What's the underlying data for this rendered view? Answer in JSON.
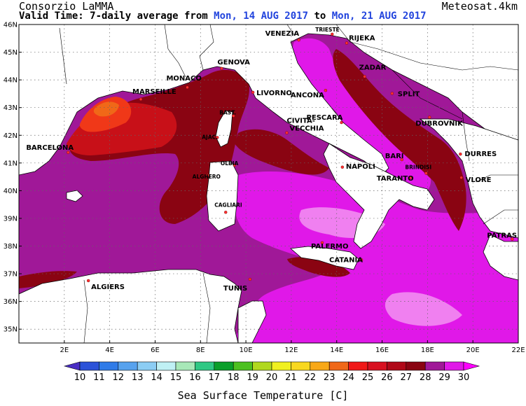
{
  "header": {
    "org": "Consorzio LaMMA",
    "product": "Meteosat.4km",
    "valid_prefix": "Valid Time: 7-daily average from",
    "date_from": "Mon, 14 AUG 2017",
    "date_sep": "to",
    "date_to": "Mon, 21 AUG 2017"
  },
  "axes": {
    "lat_labels": [
      "46N",
      "45N",
      "44N",
      "43N",
      "42N",
      "41N",
      "40N",
      "39N",
      "38N",
      "37N",
      "36N",
      "35N"
    ],
    "lon_labels": [
      "2E",
      "4E",
      "6E",
      "8E",
      "10E",
      "12E",
      "14E",
      "16E",
      "18E",
      "20E",
      "22E"
    ]
  },
  "cities": [
    {
      "name": "TRIESTE",
      "lon": 13.8,
      "lat": 45.65,
      "small": true
    },
    {
      "name": "VENEZIA",
      "lon": 12.33,
      "lat": 45.44
    },
    {
      "name": "RIJEKA",
      "lon": 14.44,
      "lat": 45.33
    },
    {
      "name": "GENOVA",
      "lon": 8.93,
      "lat": 44.41
    },
    {
      "name": "MONACO",
      "lon": 7.42,
      "lat": 43.73
    },
    {
      "name": "MARSEILLE",
      "lon": 5.37,
      "lat": 43.3
    },
    {
      "name": "LIVORNO",
      "lon": 10.31,
      "lat": 43.55
    },
    {
      "name": "ANCONA",
      "lon": 13.51,
      "lat": 43.62
    },
    {
      "name": "ZADAR",
      "lon": 15.23,
      "lat": 44.12
    },
    {
      "name": "SPLIT",
      "lon": 16.44,
      "lat": 43.51
    },
    {
      "name": "DUBROVNIK",
      "lon": 18.09,
      "lat": 42.65
    },
    {
      "name": "BAST.",
      "lon": 9.45,
      "lat": 42.7,
      "small": true
    },
    {
      "name": "AJAC.",
      "lon": 8.74,
      "lat": 41.92,
      "small": true
    },
    {
      "name": "PESCARA",
      "lon": 14.21,
      "lat": 42.46
    },
    {
      "name": "CIVITA-",
      "lon": 11.8,
      "lat": 42.09
    },
    {
      "name": "VECCHIA",
      "lon": 11.8,
      "lat": 42.09,
      "no_dot": true
    },
    {
      "name": "BARCELONA",
      "lon": 2.17,
      "lat": 41.38
    },
    {
      "name": "OLBIA",
      "lon": 9.5,
      "lat": 40.92,
      "small": true
    },
    {
      "name": "ALGHERO",
      "lon": 8.32,
      "lat": 40.56,
      "small": true
    },
    {
      "name": "NAPOLI",
      "lon": 14.25,
      "lat": 40.85
    },
    {
      "name": "BARI",
      "lon": 16.87,
      "lat": 41.12
    },
    {
      "name": "DURRES",
      "lon": 19.45,
      "lat": 41.32
    },
    {
      "name": "BRINDISI",
      "lon": 17.94,
      "lat": 40.63,
      "small": true
    },
    {
      "name": "TARANTO",
      "lon": 17.24,
      "lat": 40.47
    },
    {
      "name": "VLORE",
      "lon": 19.49,
      "lat": 40.47
    },
    {
      "name": "CAGLIARI",
      "lon": 9.11,
      "lat": 39.22,
      "small": true
    },
    {
      "name": "PATRAS",
      "lon": 21.73,
      "lat": 38.25
    },
    {
      "name": "PALERMO",
      "lon": 13.36,
      "lat": 38.12
    },
    {
      "name": "CATANIA",
      "lon": 15.09,
      "lat": 37.5
    },
    {
      "name": "ALGIERS",
      "lon": 3.06,
      "lat": 36.75
    },
    {
      "name": "TUNIS",
      "lon": 10.18,
      "lat": 36.8
    }
  ],
  "colorbar": {
    "labels": [
      "10",
      "11",
      "12",
      "13",
      "14",
      "15",
      "16",
      "17",
      "18",
      "19",
      "20",
      "21",
      "22",
      "23",
      "24",
      "25",
      "26",
      "27",
      "28",
      "29",
      "30"
    ],
    "colors": [
      "#4a2ec4",
      "#2b52d8",
      "#2f7be8",
      "#57a2ee",
      "#8ccdf4",
      "#bff0f4",
      "#a8e8b8",
      "#30c884",
      "#0a9f2a",
      "#4cc020",
      "#b0d81e",
      "#f0f020",
      "#f8d820",
      "#f8a818",
      "#f06818",
      "#f01818",
      "#d81020",
      "#b00818",
      "#8a0412",
      "#a01898",
      "#e018e8",
      "#ff00ff"
    ],
    "title": "Sea Surface Temperature [C]"
  }
}
